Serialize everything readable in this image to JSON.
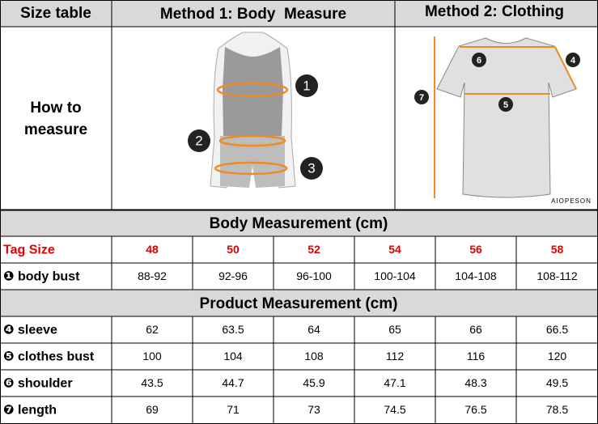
{
  "header": {
    "size_table": "Size table",
    "method1": "Method 1: Body  Measure",
    "method2": "Method 2: Clothing"
  },
  "how_to_measure": "How to measure",
  "body_figure": {
    "markers": [
      "1",
      "2",
      "3"
    ]
  },
  "clothing_figure": {
    "markers": [
      "6",
      "4",
      "7",
      "5"
    ],
    "brand": "AIOPESON"
  },
  "body_section": {
    "title": "Body Measurement (cm)",
    "rows": [
      {
        "label": "Tag Size",
        "values": [
          48,
          50,
          52,
          54,
          56,
          58
        ]
      },
      {
        "label": "❶ body bust",
        "values": [
          "88-92",
          "92-96",
          "96-100",
          "100-104",
          "104-108",
          "108-112"
        ]
      }
    ]
  },
  "product_section": {
    "title": "Product Measurement (cm)",
    "rows": [
      {
        "label": "❹ sleeve",
        "values": [
          62,
          63.5,
          64,
          65,
          66,
          66.5
        ]
      },
      {
        "label": "❺ clothes bust",
        "values": [
          100,
          104,
          108,
          112,
          116,
          120
        ]
      },
      {
        "label": "❻ shoulder",
        "values": [
          43.5,
          44.7,
          45.9,
          47.1,
          48.3,
          49.5
        ]
      },
      {
        "label": "❼ length",
        "values": [
          69,
          71,
          73,
          74.5,
          76.5,
          78.5
        ]
      }
    ]
  }
}
